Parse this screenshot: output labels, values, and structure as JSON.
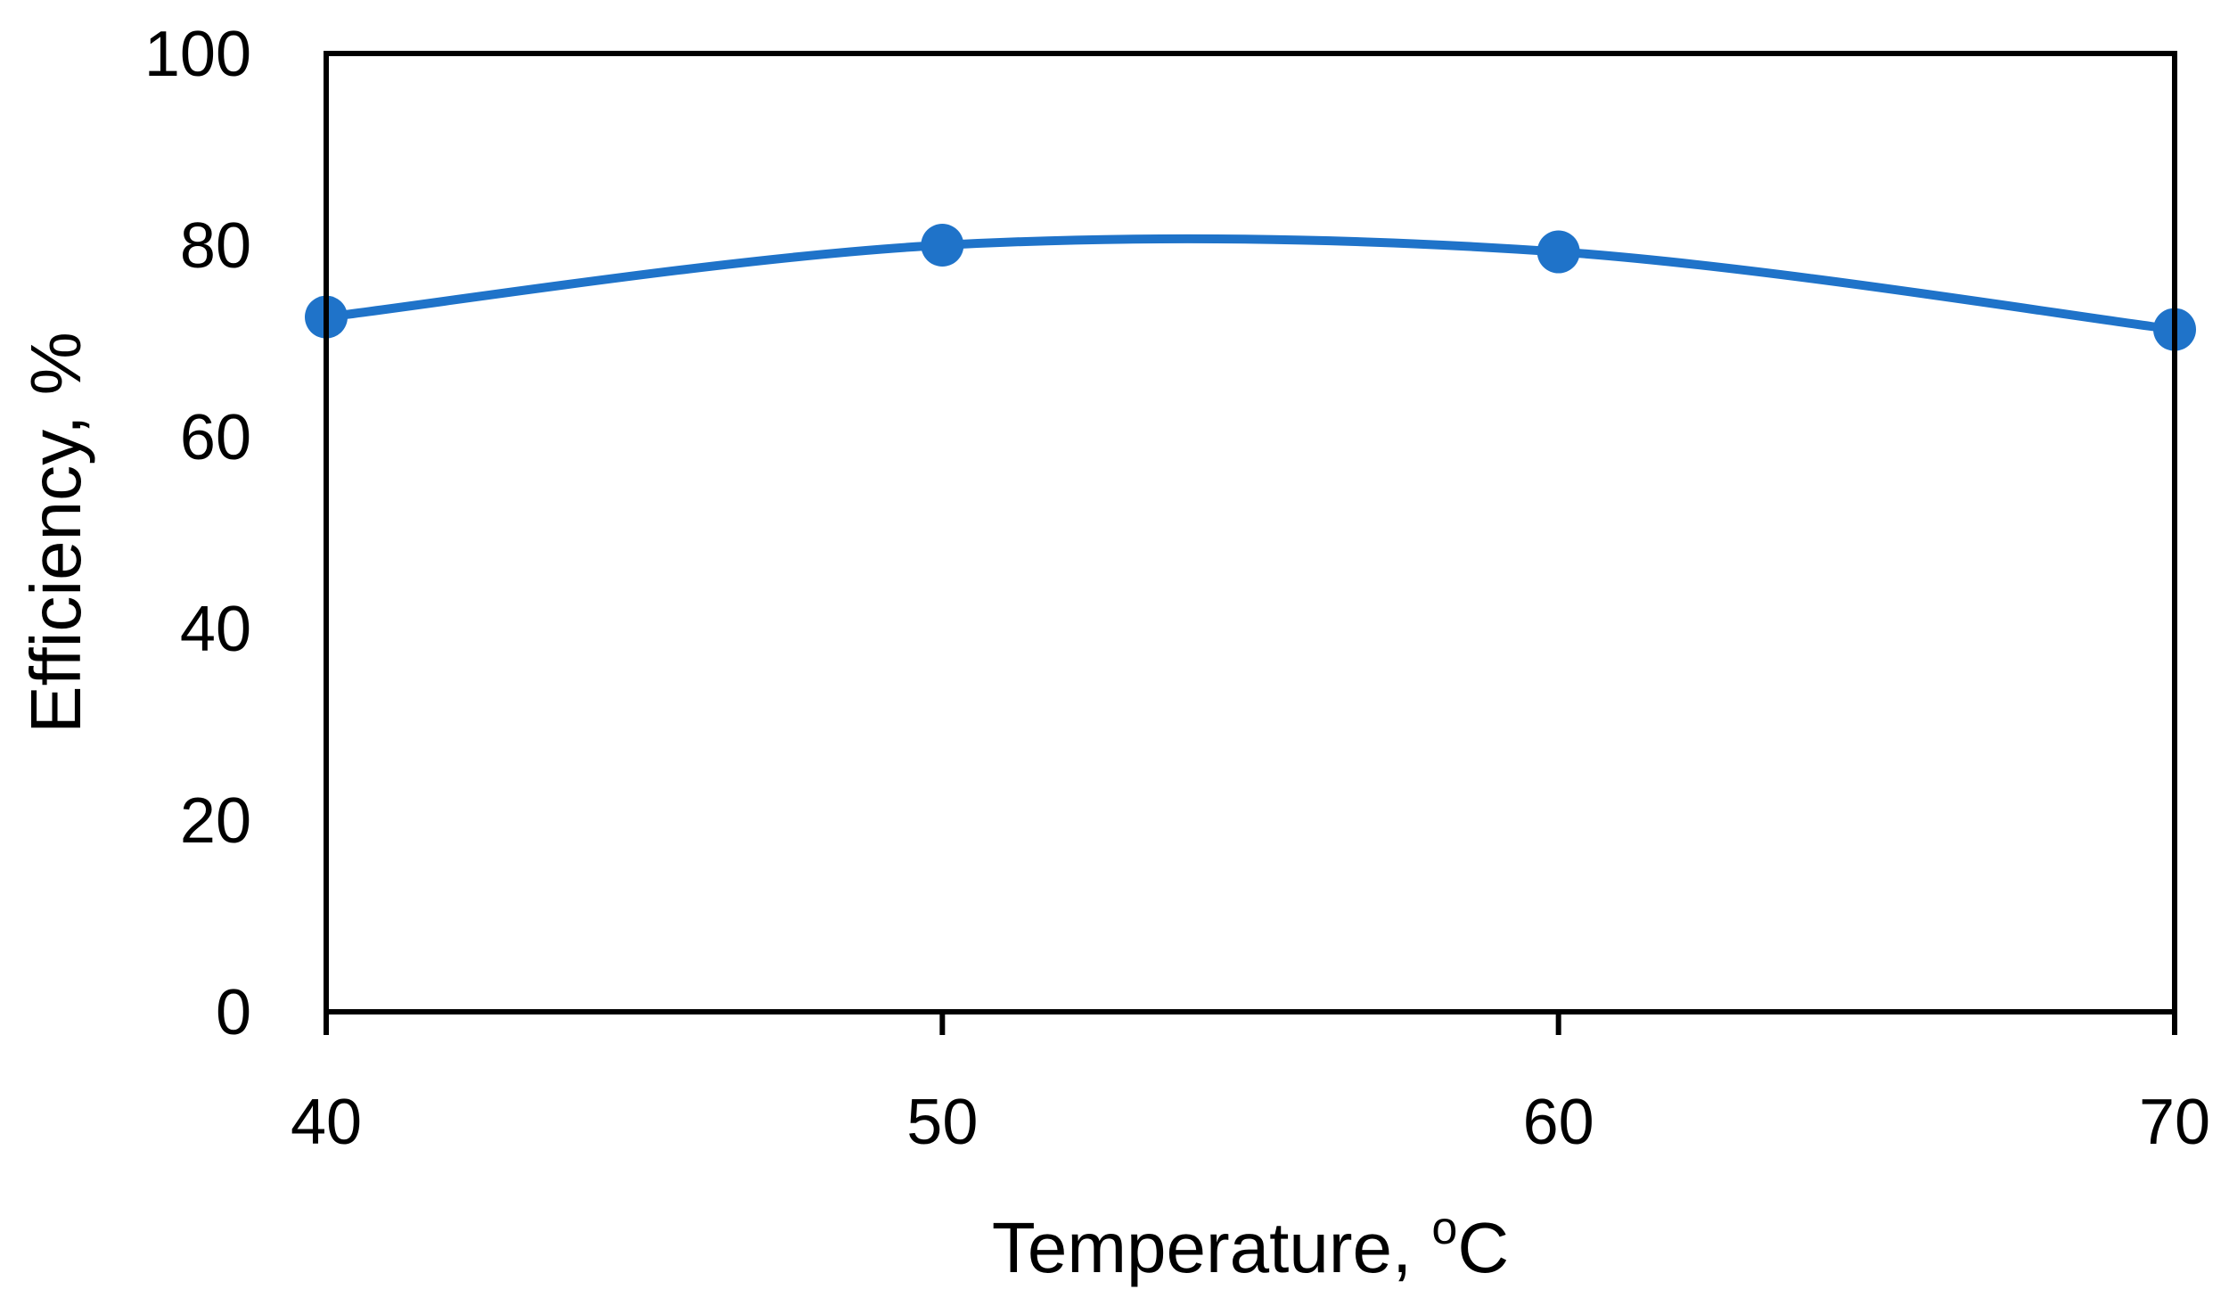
{
  "chart_data": {
    "type": "line",
    "title": "",
    "xlabel": "Temperature, ",
    "xlabel_superscript": "o",
    "xlabel_suffix": "C",
    "ylabel": "Efficiency, %",
    "x": [
      40,
      50,
      60,
      70
    ],
    "x_ticks": [
      40,
      50,
      60,
      70
    ],
    "y_ticks": [
      0,
      20,
      40,
      60,
      80,
      100
    ],
    "xlim": [
      40,
      70
    ],
    "ylim": [
      0,
      100
    ],
    "grid": false,
    "legend": "none",
    "smooth": true,
    "series": [
      {
        "values": [
          72.5,
          80.0,
          79.3,
          71.2
        ],
        "color": "#1f73c9",
        "marker": "circle"
      }
    ]
  }
}
